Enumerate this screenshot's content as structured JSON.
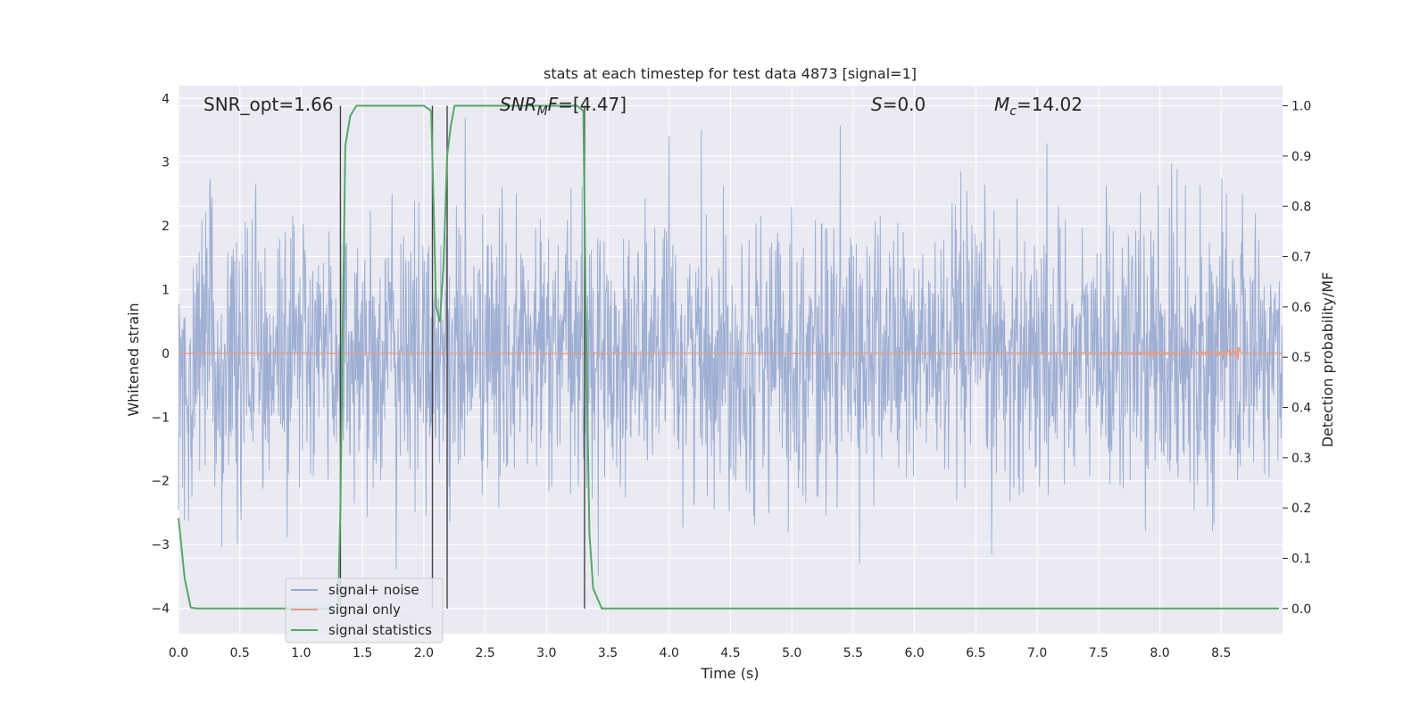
{
  "chart_data": {
    "type": "line",
    "title": "stats at each timestep for test data 4873 [signal=1]",
    "xlabel": "Time (s)",
    "ylabel_left": "Whitened strain",
    "ylabel_right": "Detection probability/MF",
    "xlim": [
      0.0,
      9.0
    ],
    "ylim_left": [
      -4.4,
      4.2
    ],
    "ylim_right": [
      -0.05,
      1.04
    ],
    "xticks": [
      "0.0",
      "0.5",
      "1.0",
      "1.5",
      "2.0",
      "2.5",
      "3.0",
      "3.5",
      "4.0",
      "4.5",
      "5.0",
      "5.5",
      "6.0",
      "6.5",
      "7.0",
      "7.5",
      "8.0",
      "8.5"
    ],
    "xtick_values": [
      0,
      0.5,
      1,
      1.5,
      2,
      2.5,
      3,
      3.5,
      4,
      4.5,
      5,
      5.5,
      6,
      6.5,
      7,
      7.5,
      8,
      8.5
    ],
    "yticks_left": [
      "−4",
      "−3",
      "−2",
      "−1",
      "0",
      "1",
      "2",
      "3",
      "4"
    ],
    "ytick_values_left": [
      -4,
      -3,
      -2,
      -1,
      0,
      1,
      2,
      3,
      4
    ],
    "yticks_right": [
      "0.0",
      "0.1",
      "0.2",
      "0.3",
      "0.4",
      "0.5",
      "0.6",
      "0.7",
      "0.8",
      "0.9",
      "1.0"
    ],
    "ytick_values_right": [
      0,
      0.1,
      0.2,
      0.3,
      0.4,
      0.5,
      0.6,
      0.7,
      0.8,
      0.9,
      1.0
    ],
    "grid": true,
    "legend_position": "lower-left",
    "annotations": {
      "snr_opt": "SNR_opt=1.66",
      "snr_mf_main": "SNR",
      "snr_mf_sub": "M",
      "snr_mf_tail": "F",
      "snr_mf_value": "=[4.47]",
      "s_symbol": "S",
      "s_value": "=0.0",
      "mc_symbol": "M",
      "mc_sub": "c",
      "mc_value": "=14.02"
    },
    "vertical_lines_x": [
      1.32,
      2.07,
      2.19,
      3.31
    ],
    "series": [
      {
        "name": "signal+ noise",
        "color": "#97a9cf",
        "axis": "left",
        "envelope": "noise band, typical amplitude ±1.5, peaks to about ±3.8"
      },
      {
        "name": "signal only",
        "color": "#e1a088",
        "axis": "left",
        "chirp_end_x": 8.65,
        "chirp_peak_amplitude": 0.35
      },
      {
        "name": "signal statistics",
        "color": "#55a868",
        "axis": "right",
        "x": [
          0.0,
          0.05,
          0.1,
          0.15,
          0.5,
          1.0,
          1.3,
          1.32,
          1.36,
          1.4,
          1.45,
          1.5,
          1.8,
          2.0,
          2.06,
          2.08,
          2.1,
          2.13,
          2.16,
          2.19,
          2.22,
          2.25,
          2.3,
          2.6,
          3.0,
          3.25,
          3.3,
          3.32,
          3.35,
          3.38,
          3.45,
          3.5,
          4.0,
          5.0,
          6.0,
          7.0,
          8.0,
          8.97
        ],
        "y": [
          0.18,
          0.06,
          0.002,
          0.0,
          0.0,
          0.0,
          0.0,
          0.2,
          0.92,
          0.98,
          1.0,
          1.0,
          1.0,
          1.0,
          0.99,
          0.8,
          0.6,
          0.57,
          0.68,
          0.9,
          0.96,
          1.0,
          1.0,
          1.0,
          1.0,
          1.0,
          0.99,
          0.6,
          0.15,
          0.04,
          0.0,
          0.0,
          0.0,
          0.0,
          0.0,
          0.0,
          0.0,
          0.0
        ]
      }
    ]
  },
  "colors": {
    "axes_bg": "#eaeaf2",
    "grid": "#ffffff",
    "vline": "#444444"
  }
}
